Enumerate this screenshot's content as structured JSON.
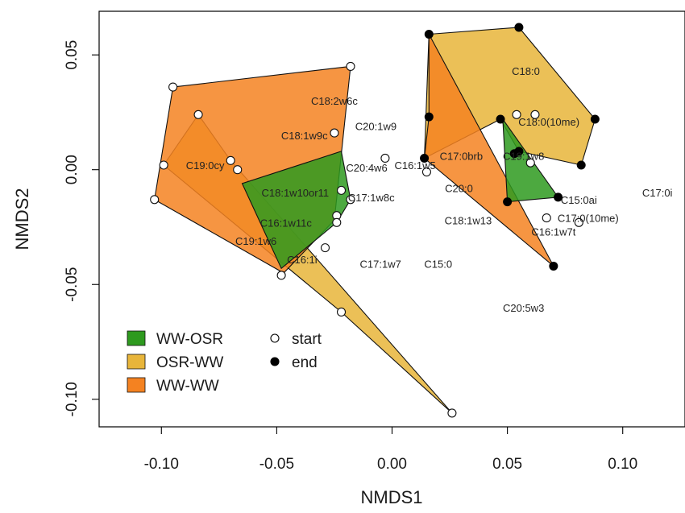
{
  "chart_data": {
    "type": "scatter",
    "title": "",
    "xlabel": "NMDS1",
    "ylabel": "NMDS2",
    "xlim": [
      -0.127,
      0.127
    ],
    "ylim": [
      -0.112,
      0.069
    ],
    "x_ticks": [
      -0.1,
      -0.05,
      0.0,
      0.05,
      0.1
    ],
    "x_tick_labels": [
      "-0.10",
      "-0.05",
      "0.00",
      "0.05",
      "0.10"
    ],
    "y_ticks": [
      -0.1,
      -0.05,
      0.0,
      0.05
    ],
    "y_tick_labels": [
      "-0.10",
      "-0.05",
      "0.00",
      "0.05"
    ],
    "grid": false,
    "legend_position": "bottom-left",
    "series": [
      {
        "name": "OSR-WW",
        "color": "#e8b53a",
        "polygons": [
          [
            [
              0.016,
              0.059
            ],
            [
              0.055,
              0.062
            ],
            [
              0.088,
              0.022
            ],
            [
              0.082,
              0.002
            ],
            [
              0.055,
              0.008
            ],
            [
              0.047,
              0.022
            ],
            [
              0.014,
              0.005
            ]
          ],
          [
            [
              -0.099,
              0.002
            ],
            [
              -0.084,
              0.024
            ],
            [
              -0.07,
              0.004
            ],
            [
              0.026,
              -0.106
            ],
            [
              -0.022,
              -0.062
            ]
          ]
        ]
      },
      {
        "name": "WW-WW",
        "color": "#f48221",
        "polygons": [
          [
            [
              -0.095,
              0.036
            ],
            [
              -0.018,
              0.045
            ],
            [
              -0.025,
              -0.022
            ],
            [
              -0.047,
              -0.045
            ],
            [
              -0.103,
              -0.013
            ]
          ],
          [
            [
              0.016,
              0.059
            ],
            [
              0.07,
              -0.042
            ],
            [
              0.014,
              0.005
            ],
            [
              0.016,
              0.023
            ]
          ]
        ]
      },
      {
        "name": "WW-OSR",
        "color": "#2e9a1f",
        "polygons": [
          [
            [
              -0.022,
              0.008
            ],
            [
              -0.018,
              -0.013
            ],
            [
              -0.024,
              -0.023
            ],
            [
              -0.048,
              -0.043
            ],
            [
              -0.065,
              -0.006
            ]
          ],
          [
            [
              0.048,
              0.022
            ],
            [
              0.072,
              -0.012
            ],
            [
              0.05,
              -0.014
            ]
          ]
        ]
      }
    ],
    "start_points": [
      [
        -0.095,
        0.036
      ],
      [
        -0.018,
        0.045
      ],
      [
        -0.084,
        0.024
      ],
      [
        -0.099,
        0.002
      ],
      [
        -0.103,
        -0.013
      ],
      [
        -0.07,
        0.004
      ],
      [
        -0.067,
        0.0
      ],
      [
        -0.025,
        0.016
      ],
      [
        -0.022,
        -0.009
      ],
      [
        -0.018,
        -0.013
      ],
      [
        -0.024,
        -0.02
      ],
      [
        -0.024,
        -0.023
      ],
      [
        -0.029,
        -0.034
      ],
      [
        -0.048,
        -0.046
      ],
      [
        -0.022,
        -0.062
      ],
      [
        0.026,
        -0.106
      ],
      [
        -0.003,
        0.005
      ],
      [
        0.015,
        -0.001
      ],
      [
        0.054,
        0.024
      ],
      [
        0.062,
        0.024
      ],
      [
        0.06,
        0.003
      ],
      [
        0.067,
        -0.021
      ],
      [
        0.081,
        -0.023
      ]
    ],
    "end_points": [
      [
        0.016,
        0.059
      ],
      [
        0.055,
        0.062
      ],
      [
        0.088,
        0.022
      ],
      [
        0.082,
        0.002
      ],
      [
        0.016,
        0.023
      ],
      [
        0.014,
        0.005
      ],
      [
        0.047,
        0.022
      ],
      [
        0.055,
        0.008
      ],
      [
        0.053,
        0.007
      ],
      [
        0.05,
        -0.014
      ],
      [
        0.072,
        -0.012
      ],
      [
        0.07,
        -0.042
      ]
    ],
    "species_labels": [
      {
        "text": "C18:0",
        "x": 0.058,
        "y": 0.043
      },
      {
        "text": "C18:2w6c",
        "x": -0.025,
        "y": 0.03
      },
      {
        "text": "C20:1w9",
        "x": -0.007,
        "y": 0.019
      },
      {
        "text": "C18:0(10me)",
        "x": 0.068,
        "y": 0.021
      },
      {
        "text": "C18:1w9c",
        "x": -0.038,
        "y": 0.015
      },
      {
        "text": "C17:0brb",
        "x": 0.03,
        "y": 0.006
      },
      {
        "text": "C19:1w8",
        "x": 0.057,
        "y": 0.006
      },
      {
        "text": "C19:0cy",
        "x": -0.081,
        "y": 0.002
      },
      {
        "text": "C20:4w6",
        "x": -0.011,
        "y": 0.001
      },
      {
        "text": "C16:1w5",
        "x": 0.01,
        "y": 0.002
      },
      {
        "text": "C18:1w10or11",
        "x": -0.042,
        "y": -0.01
      },
      {
        "text": "C20:0",
        "x": 0.029,
        "y": -0.008
      },
      {
        "text": "C17:1w8c",
        "x": -0.009,
        "y": -0.012
      },
      {
        "text": "C15:0ai",
        "x": 0.081,
        "y": -0.013
      },
      {
        "text": "C17:0i",
        "x": 0.115,
        "y": -0.01
      },
      {
        "text": "C16:1w11c",
        "x": -0.046,
        "y": -0.023
      },
      {
        "text": "C18:1w13",
        "x": 0.033,
        "y": -0.022
      },
      {
        "text": "C17:0(10me)",
        "x": 0.085,
        "y": -0.021
      },
      {
        "text": "C16:1w7t",
        "x": 0.07,
        "y": -0.027
      },
      {
        "text": "C19:1w6",
        "x": -0.059,
        "y": -0.031
      },
      {
        "text": "C16:1i",
        "x": -0.039,
        "y": -0.039
      },
      {
        "text": "C17:1w7",
        "x": -0.005,
        "y": -0.041
      },
      {
        "text": "C15:0",
        "x": 0.02,
        "y": -0.041
      },
      {
        "text": "C20:5w3",
        "x": 0.057,
        "y": -0.06
      }
    ]
  },
  "legend": {
    "groups": [
      {
        "label": "WW-OSR",
        "color": "#2e9a1f"
      },
      {
        "label": "OSR-WW",
        "color": "#e8b53a"
      },
      {
        "label": "WW-WW",
        "color": "#f48221"
      }
    ],
    "points": [
      {
        "label": "start",
        "filled": false
      },
      {
        "label": "end",
        "filled": true
      }
    ]
  }
}
